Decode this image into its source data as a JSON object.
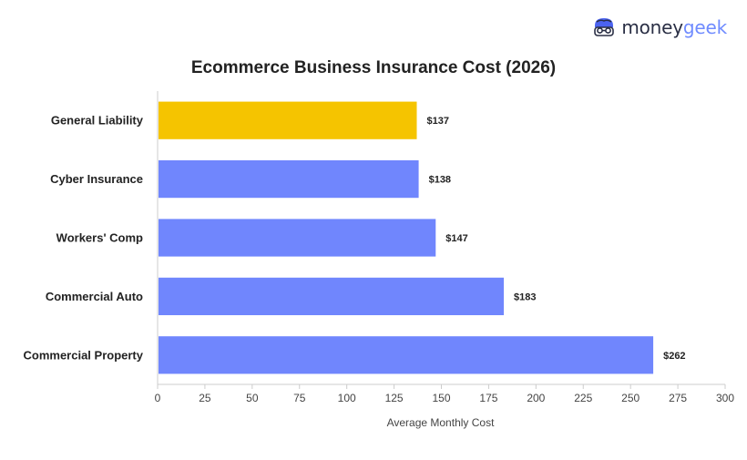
{
  "brand": {
    "name_part1": "money",
    "name_part2": "geek",
    "icon": "nerd-face-icon"
  },
  "colors": {
    "highlight": "#f5c400",
    "default_bar": "#7086fd",
    "axis": "#cccccc",
    "text": "#222222",
    "muted_text": "#444444"
  },
  "chart_data": {
    "type": "bar",
    "orientation": "horizontal",
    "title": "Ecommerce Business Insurance Cost (2026)",
    "xlabel": "Average Monthly Cost",
    "ylabel": "",
    "categories": [
      "General Liability",
      "Cyber Insurance",
      "Workers' Comp",
      "Commercial Auto",
      "Commercial Property"
    ],
    "values": [
      137,
      138,
      147,
      183,
      262
    ],
    "value_labels": [
      "$137",
      "$138",
      "$147",
      "$183",
      "$262"
    ],
    "highlight_index": 0,
    "xlim": [
      0,
      300
    ],
    "xticks": [
      0,
      25,
      50,
      75,
      100,
      125,
      150,
      175,
      200,
      225,
      250,
      275,
      300
    ],
    "grid": false,
    "legend": "none"
  }
}
